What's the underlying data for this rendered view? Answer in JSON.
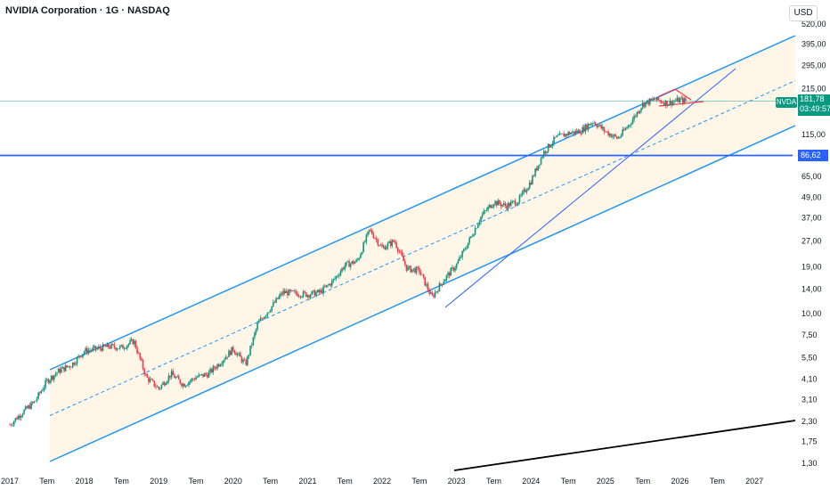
{
  "header": {
    "title": "NVIDIA Corporation · 1G · NASDAQ",
    "currency": "USD"
  },
  "price_tag": {
    "symbol": "NVDA",
    "price": "181,78",
    "countdown": "03:49:57",
    "color": "#089981"
  },
  "level_tag": {
    "value": "86,62",
    "color": "#2962ff"
  },
  "colors": {
    "channel": "#2196f3",
    "channel_fill": "#fff3e0",
    "hline": "#2962ff",
    "up": "#089981",
    "down": "#f23645",
    "trend_black": "#000000",
    "last_price_line": "#089981"
  },
  "chart_data": {
    "type": "candlestick",
    "title": "NVIDIA Corporation · 1G · NASDAQ",
    "xlabel": "",
    "ylabel": "",
    "y_scale": "log",
    "ylim": [
      1.2,
      620
    ],
    "xlim": [
      "2016-12-01",
      "2027-06-01"
    ],
    "y_ticks": [
      "520,00",
      "395,00",
      "295,00",
      "215,00",
      "115,00",
      "65,00",
      "49,00",
      "37,00",
      "27,00",
      "19,00",
      "14,00",
      "10,00",
      "7,50",
      "5,50",
      "4,10",
      "3,10",
      "2,30",
      "1,75",
      "1,30"
    ],
    "x_ticks": [
      "2017",
      "Tem",
      "2018",
      "Tem",
      "2019",
      "Tem",
      "2020",
      "Tem",
      "2021",
      "Tem",
      "2022",
      "Tem",
      "2023",
      "Tem",
      "2024",
      "Tem",
      "2025",
      "Tem",
      "2026",
      "Tem",
      "2027"
    ],
    "series": [
      {
        "name": "NVDA",
        "points": [
          {
            "x": "2017-01",
            "y": 2.2
          },
          {
            "x": "2017-03",
            "y": 2.6
          },
          {
            "x": "2017-05",
            "y": 3.0
          },
          {
            "x": "2017-07",
            "y": 4.0
          },
          {
            "x": "2017-09",
            "y": 4.6
          },
          {
            "x": "2017-11",
            "y": 5.0
          },
          {
            "x": "2018-01",
            "y": 6.0
          },
          {
            "x": "2018-03",
            "y": 6.2
          },
          {
            "x": "2018-05",
            "y": 6.4
          },
          {
            "x": "2018-07",
            "y": 6.3
          },
          {
            "x": "2018-09",
            "y": 6.9
          },
          {
            "x": "2018-11",
            "y": 4.2
          },
          {
            "x": "2019-01",
            "y": 3.6
          },
          {
            "x": "2019-03",
            "y": 4.4
          },
          {
            "x": "2019-05",
            "y": 3.8
          },
          {
            "x": "2019-07",
            "y": 4.2
          },
          {
            "x": "2019-09",
            "y": 4.4
          },
          {
            "x": "2019-11",
            "y": 5.2
          },
          {
            "x": "2020-01",
            "y": 6.2
          },
          {
            "x": "2020-03",
            "y": 5.0
          },
          {
            "x": "2020-05",
            "y": 8.8
          },
          {
            "x": "2020-07",
            "y": 10.8
          },
          {
            "x": "2020-09",
            "y": 13.4
          },
          {
            "x": "2020-11",
            "y": 13.2
          },
          {
            "x": "2021-01",
            "y": 13.0
          },
          {
            "x": "2021-03",
            "y": 13.4
          },
          {
            "x": "2021-05",
            "y": 15.5
          },
          {
            "x": "2021-07",
            "y": 19.4
          },
          {
            "x": "2021-09",
            "y": 20.5
          },
          {
            "x": "2021-11",
            "y": 31.5
          },
          {
            "x": "2022-01",
            "y": 24.5
          },
          {
            "x": "2022-03",
            "y": 27.0
          },
          {
            "x": "2022-05",
            "y": 18.5
          },
          {
            "x": "2022-07",
            "y": 18.0
          },
          {
            "x": "2022-09",
            "y": 12.5
          },
          {
            "x": "2022-11",
            "y": 16.0
          },
          {
            "x": "2023-01",
            "y": 19.5
          },
          {
            "x": "2023-03",
            "y": 27.0
          },
          {
            "x": "2023-05",
            "y": 38.0
          },
          {
            "x": "2023-07",
            "y": 46.0
          },
          {
            "x": "2023-09",
            "y": 43.5
          },
          {
            "x": "2023-11",
            "y": 47.0
          },
          {
            "x": "2024-01",
            "y": 61.0
          },
          {
            "x": "2024-03",
            "y": 90.0
          },
          {
            "x": "2024-05",
            "y": 110.0
          },
          {
            "x": "2024-07",
            "y": 117.0
          },
          {
            "x": "2024-09",
            "y": 121.0
          },
          {
            "x": "2024-11",
            "y": 138.0
          },
          {
            "x": "2025-01",
            "y": 120.0
          },
          {
            "x": "2025-03",
            "y": 109.0
          },
          {
            "x": "2025-05",
            "y": 135.0
          },
          {
            "x": "2025-07",
            "y": 175.0
          },
          {
            "x": "2025-09",
            "y": 186.0
          },
          {
            "x": "2025-11",
            "y": 177.0
          },
          {
            "x": "2026-01",
            "y": 185.0
          },
          {
            "x": "2026-02",
            "y": 181.78
          }
        ]
      }
    ],
    "last_price": 181.78,
    "horizontal_level": 86.62
  }
}
